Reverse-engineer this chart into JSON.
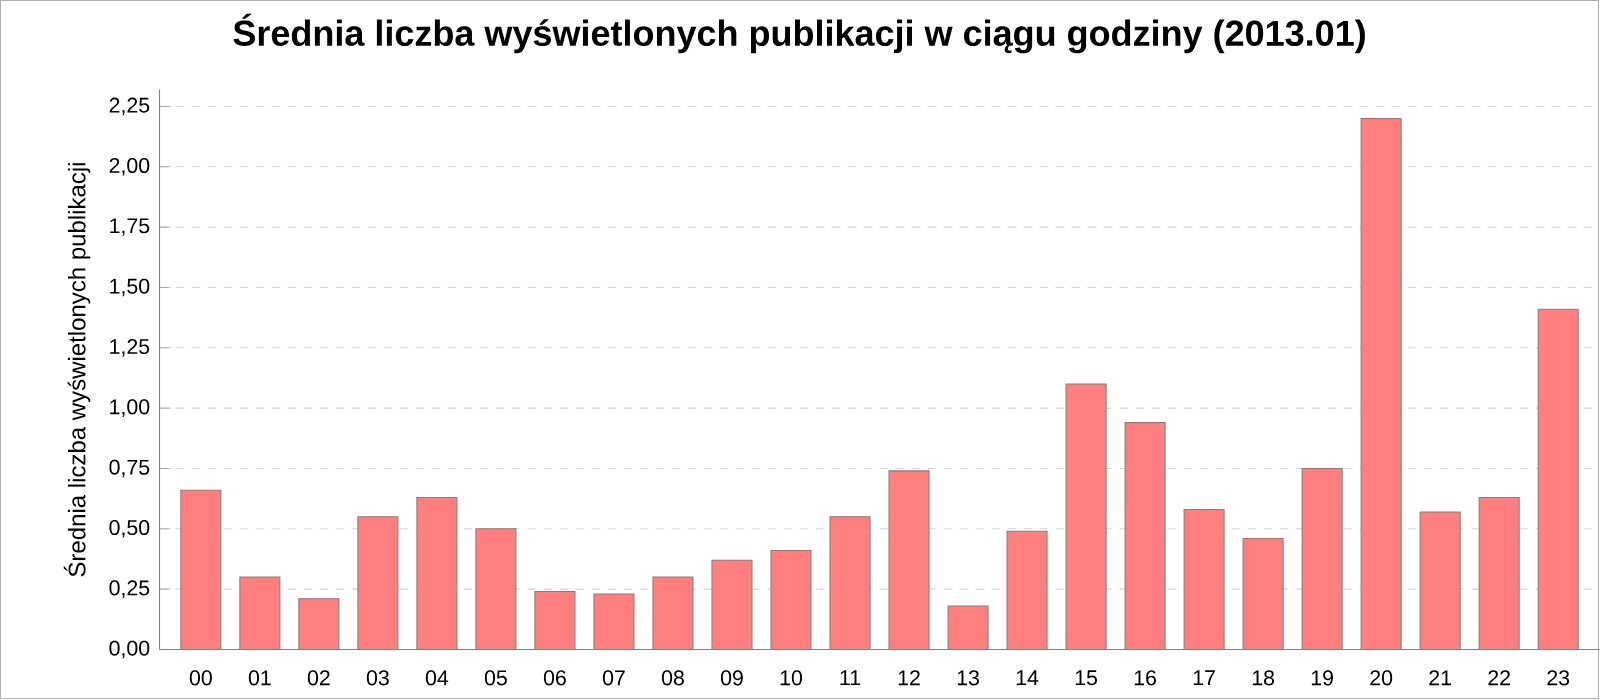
{
  "chart_data": {
    "type": "bar",
    "title": "Średnia liczba wyświetlonych publikacji w ciągu godziny (2013.01)",
    "ylabel": "Średnia liczba wyświetlonych publikacji",
    "categories": [
      "00",
      "01",
      "02",
      "03",
      "04",
      "05",
      "06",
      "07",
      "08",
      "09",
      "10",
      "11",
      "12",
      "13",
      "14",
      "15",
      "16",
      "17",
      "18",
      "19",
      "20",
      "21",
      "22",
      "23"
    ],
    "values": [
      0.66,
      0.3,
      0.21,
      0.55,
      0.63,
      0.5,
      0.24,
      0.23,
      0.3,
      0.37,
      0.41,
      0.55,
      0.74,
      0.18,
      0.49,
      1.1,
      0.94,
      0.58,
      0.46,
      0.75,
      2.2,
      0.57,
      0.63,
      1.41
    ],
    "color": "#ff7f7f",
    "ylim": [
      0,
      2.32
    ],
    "yticks": [
      {
        "value": 0,
        "label": "0,00"
      },
      {
        "value": 0.25,
        "label": "0,25"
      },
      {
        "value": 0.5,
        "label": "0,50"
      },
      {
        "value": 0.75,
        "label": "0,75"
      },
      {
        "value": 1,
        "label": "1,00"
      },
      {
        "value": 1.25,
        "label": "1,25"
      },
      {
        "value": 1.5,
        "label": "1,50"
      },
      {
        "value": 1.75,
        "label": "1,75"
      },
      {
        "value": 2,
        "label": "2,00"
      },
      {
        "value": 2.25,
        "label": "2,25"
      }
    ],
    "grid": "y"
  }
}
